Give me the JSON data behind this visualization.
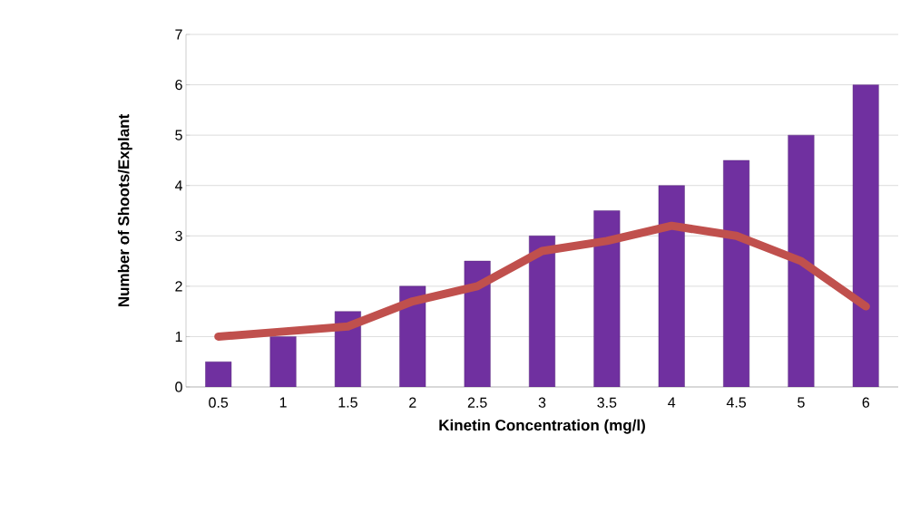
{
  "chart_data": {
    "type": "bar",
    "xlabel": "Kinetin Concentration (mg/l)",
    "ylabel": "Number of Shoots/Explant",
    "categories": [
      "0.5",
      "1",
      "1.5",
      "2",
      "2.5",
      "3",
      "3.5",
      "4",
      "4.5",
      "5",
      "6"
    ],
    "series": [
      {
        "color": "#7030a0",
        "values": [
          0.5,
          1,
          1.5,
          2,
          2.5,
          3,
          3.5,
          4,
          4.5,
          5,
          6
        ]
      },
      {
        "type": "line",
        "color": "#c0504d",
        "values": [
          1.0,
          1.1,
          1.2,
          1.7,
          2.0,
          2.7,
          2.9,
          3.2,
          3.0,
          2.5,
          1.6
        ]
      }
    ],
    "ylim": [
      0,
      7
    ],
    "yticks": [
      0,
      1,
      2,
      3,
      4,
      5,
      6,
      7
    ],
    "grid": "y"
  }
}
